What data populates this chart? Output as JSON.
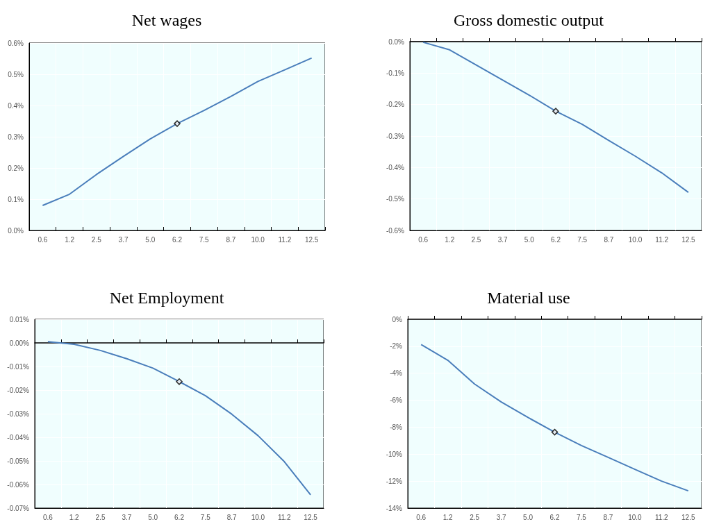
{
  "chart_data": [
    {
      "type": "line",
      "title": "Net wages",
      "categories": [
        "0.6",
        "1.2",
        "2.5",
        "3.7",
        "5.0",
        "6.2",
        "7.5",
        "8.7",
        "10.0",
        "11.2",
        "12.5"
      ],
      "series": [
        {
          "color": "#4a7ebb",
          "marker": "none",
          "values": [
            0.08,
            0.116,
            0.179,
            0.237,
            0.293,
            0.342,
            0.384,
            0.429,
            0.477,
            0.514,
            0.552
          ]
        },
        {
          "type": "scatter",
          "color": "#000000",
          "marker": "diamond",
          "x": [
            "6.2"
          ],
          "values": [
            0.342
          ]
        }
      ],
      "ylim": [
        0,
        0.6
      ],
      "yticks": [
        {
          "value": 0,
          "label": "0.0%"
        },
        {
          "value": 0.1,
          "label": "0.1%"
        },
        {
          "value": 0.2,
          "label": "0.2%"
        },
        {
          "value": 0.3,
          "label": "0.3%"
        },
        {
          "value": 0.4,
          "label": "0.4%"
        },
        {
          "value": 0.5,
          "label": "0.5%"
        },
        {
          "value": 0.6,
          "label": "0.6%"
        }
      ],
      "grid": true
    },
    {
      "type": "line",
      "title": "Gross domestic output",
      "categories": [
        "0.6",
        "1.2",
        "2.5",
        "3.7",
        "5.0",
        "6.2",
        "7.5",
        "8.7",
        "10.0",
        "11.2",
        "12.5"
      ],
      "series": [
        {
          "color": "#4a7ebb",
          "marker": "none",
          "values": [
            -0.002,
            -0.026,
            -0.074,
            -0.122,
            -0.17,
            -0.221,
            -0.263,
            -0.314,
            -0.364,
            -0.417,
            -0.479
          ]
        },
        {
          "type": "scatter",
          "color": "#000000",
          "marker": "diamond",
          "x": [
            "6.2"
          ],
          "values": [
            -0.221
          ]
        }
      ],
      "ylim": [
        -0.6,
        0
      ],
      "yticks": [
        {
          "value": -0.6,
          "label": "-0.6%"
        },
        {
          "value": -0.5,
          "label": "-0.5%"
        },
        {
          "value": -0.4,
          "label": "-0.4%"
        },
        {
          "value": -0.3,
          "label": "-0.3%"
        },
        {
          "value": -0.2,
          "label": "-0.2%"
        },
        {
          "value": -0.1,
          "label": "-0.1%"
        },
        {
          "value": 0,
          "label": "0.0%"
        }
      ],
      "grid": true
    },
    {
      "type": "line",
      "title": "Net Employment",
      "categories": [
        "0.6",
        "1.2",
        "2.5",
        "3.7",
        "5.0",
        "6.2",
        "7.5",
        "8.7",
        "10.0",
        "11.2",
        "12.5"
      ],
      "series": [
        {
          "color": "#4a7ebb",
          "marker": "none",
          "values": [
            0.0005,
            -0.0006,
            -0.0032,
            -0.0067,
            -0.0107,
            -0.0164,
            -0.0224,
            -0.0302,
            -0.0393,
            -0.0503,
            -0.0644
          ]
        },
        {
          "type": "scatter",
          "color": "#000000",
          "marker": "diamond",
          "x": [
            "6.2"
          ],
          "values": [
            -0.0164
          ]
        }
      ],
      "ylim": [
        -0.07,
        0.01
      ],
      "yticks": [
        {
          "value": -0.07,
          "label": "-0.07%"
        },
        {
          "value": -0.06,
          "label": "-0.06%"
        },
        {
          "value": -0.05,
          "label": "-0.05%"
        },
        {
          "value": -0.04,
          "label": "-0.04%"
        },
        {
          "value": -0.03,
          "label": "-0.03%"
        },
        {
          "value": -0.02,
          "label": "-0.02%"
        },
        {
          "value": -0.01,
          "label": "-0.01%"
        },
        {
          "value": 0,
          "label": "0.00%"
        },
        {
          "value": 0.01,
          "label": "0.01%"
        }
      ],
      "grid": true
    },
    {
      "type": "line",
      "title": "Material use",
      "categories": [
        "0.6",
        "1.2",
        "2.5",
        "3.7",
        "5.0",
        "6.2",
        "7.5",
        "8.7",
        "10.0",
        "11.2",
        "12.5"
      ],
      "series": [
        {
          "color": "#4a7ebb",
          "marker": "none",
          "values": [
            -1.87,
            -3.04,
            -4.8,
            -6.13,
            -7.28,
            -8.37,
            -9.36,
            -10.24,
            -11.12,
            -12.0,
            -12.72
          ]
        },
        {
          "type": "scatter",
          "color": "#000000",
          "marker": "diamond",
          "x": [
            "6.2"
          ],
          "values": [
            -8.37
          ]
        }
      ],
      "ylim": [
        -14,
        0
      ],
      "yticks": [
        {
          "value": -14,
          "label": "-14%"
        },
        {
          "value": -12,
          "label": "-12%"
        },
        {
          "value": -10,
          "label": "-10%"
        },
        {
          "value": -8,
          "label": "-8%"
        },
        {
          "value": -6,
          "label": "-6%"
        },
        {
          "value": -4,
          "label": "-4%"
        },
        {
          "value": -2,
          "label": "-2%"
        },
        {
          "value": 0,
          "label": "0%"
        }
      ],
      "grid": true
    }
  ]
}
